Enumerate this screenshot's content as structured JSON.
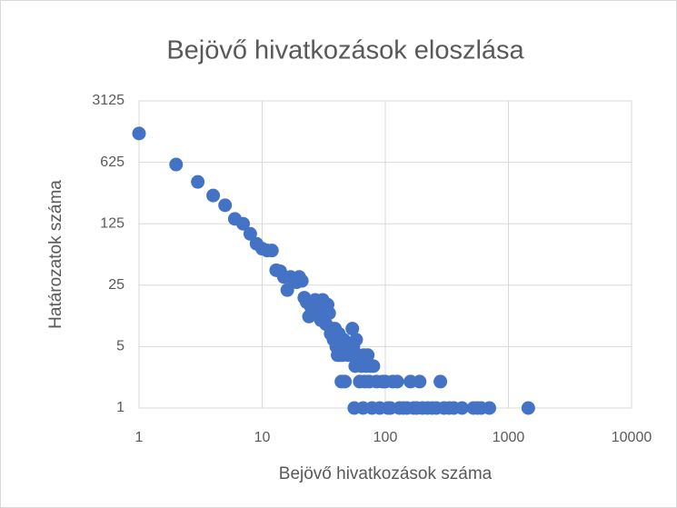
{
  "chart_data": {
    "type": "scatter",
    "title": "Bejövő hivatkozások eloszlása",
    "x_label": "Bejövő hivatkozások száma",
    "y_label": "Határozatok száma",
    "xscale": "log",
    "yscale": "log",
    "grid": true,
    "color": "#4472c4",
    "xlim": [
      1,
      10000
    ],
    "xticks": [
      1,
      10,
      100,
      1000,
      10000
    ],
    "ylim": [
      1,
      3125
    ],
    "yticks": [
      1,
      5,
      25,
      125,
      625,
      3125
    ],
    "x": [
      1,
      2,
      3,
      4,
      5,
      6,
      7,
      8,
      9,
      10,
      11,
      12,
      13,
      14,
      15,
      16,
      17,
      18,
      19,
      20,
      21,
      22,
      23,
      24,
      25,
      26,
      27,
      28,
      29,
      30,
      31,
      32,
      33,
      34,
      35,
      36,
      37,
      38,
      39,
      40,
      41,
      42,
      43,
      44,
      45,
      46,
      47,
      48,
      50,
      52,
      54,
      55,
      56,
      57,
      58,
      60,
      62,
      64,
      66,
      67,
      68,
      70,
      72,
      74,
      76,
      78,
      80,
      85,
      90,
      95,
      100,
      105,
      110,
      115,
      125,
      130,
      140,
      150,
      160,
      170,
      180,
      190,
      200,
      220,
      240,
      260,
      280,
      300,
      330,
      360,
      420,
      520,
      560,
      600,
      700,
      1450
    ],
    "values": [
      1330,
      590,
      374,
      262,
      203,
      142,
      125,
      96,
      74,
      65,
      62,
      62,
      37,
      36,
      31,
      22,
      31,
      29,
      27,
      31,
      28,
      18,
      16,
      11,
      14,
      13,
      17,
      15,
      13,
      10,
      17,
      13,
      9,
      15,
      12,
      7,
      8,
      6,
      8,
      5,
      4,
      7,
      4,
      2,
      4,
      6,
      2,
      5,
      4,
      5,
      8,
      5,
      1,
      3,
      6,
      4,
      2,
      3,
      1,
      4,
      2,
      3,
      4,
      2,
      3,
      1,
      3,
      2,
      1,
      2,
      2,
      1,
      1,
      2,
      2,
      1,
      1,
      1,
      2,
      1,
      1,
      2,
      1,
      1,
      1,
      1,
      2,
      1,
      1,
      1,
      1,
      1,
      1,
      1,
      1,
      1
    ]
  }
}
